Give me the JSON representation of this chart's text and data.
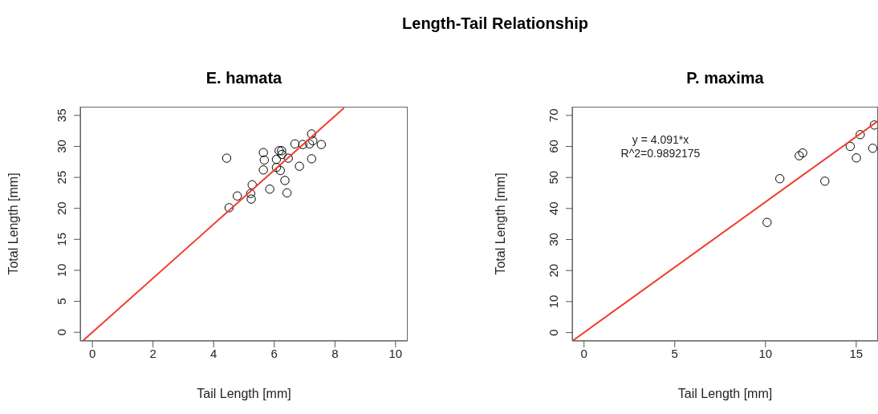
{
  "chart_data": [
    {
      "type": "scatter",
      "title": "E. hamata",
      "xlabel": "Tail Length [mm]",
      "ylabel": "Total Length [mm]",
      "annotations": [
        "Length-Tail Relationship"
      ],
      "xlim": [
        -0.4,
        10.4
      ],
      "ylim": [
        -1.4,
        36.4
      ],
      "xticks": [
        0,
        2,
        4,
        6,
        8,
        10
      ],
      "yticks": [
        0,
        5,
        10,
        15,
        20,
        25,
        30,
        35
      ],
      "grid": false,
      "line_style": "solid",
      "series": [
        {
          "marker": "circle",
          "color": "#000000",
          "x": [
            4.43,
            4.51,
            4.78,
            5.22,
            5.24,
            5.27,
            5.64,
            5.67,
            5.64,
            5.85,
            6.07,
            6.07,
            6.16,
            6.24,
            6.25,
            6.2,
            6.35,
            6.42,
            6.46,
            6.68,
            6.83,
            6.94,
            7.16,
            7.23,
            7.27,
            7.23,
            7.55
          ],
          "values": [
            28.1,
            20.1,
            22.0,
            22.4,
            21.5,
            23.8,
            29.0,
            27.8,
            26.2,
            23.1,
            27.9,
            26.6,
            29.3,
            29.3,
            28.7,
            26.1,
            24.5,
            22.5,
            28.1,
            30.4,
            26.8,
            30.3,
            30.4,
            32.0,
            30.9,
            28.0,
            30.3
          ]
        },
        {
          "type": "line",
          "marker": "none",
          "color": "#f03c2c",
          "x": [
            -0.3,
            8.3
          ],
          "values": [
            -1.3,
            36.2
          ]
        }
      ]
    },
    {
      "type": "scatter",
      "title": "P. maxima",
      "xlabel": "Tail Length [mm]",
      "ylabel": "Total Length [mm]",
      "annotations": [
        "y = 4.091*x",
        "R^2=0.9892175"
      ],
      "xlim": [
        -0.65,
        16.2
      ],
      "ylim": [
        -2.7,
        72.8
      ],
      "xticks": [
        0,
        5,
        10,
        15
      ],
      "yticks": [
        0,
        10,
        20,
        30,
        40,
        50,
        60,
        70
      ],
      "grid": false,
      "line_style": "solid",
      "series": [
        {
          "marker": "circle",
          "color": "#000000",
          "x": [
            10.09,
            10.79,
            11.86,
            12.05,
            13.27,
            14.67,
            15.01,
            15.22,
            15.91,
            16.0
          ],
          "values": [
            35.5,
            49.6,
            57.0,
            57.9,
            48.8,
            60.0,
            56.3,
            63.8,
            59.4,
            66.9
          ]
        },
        {
          "type": "line",
          "marker": "none",
          "color": "#f03c2c",
          "x": [
            -0.6,
            16.2
          ],
          "values": [
            -2.5,
            68.2
          ]
        }
      ]
    }
  ]
}
